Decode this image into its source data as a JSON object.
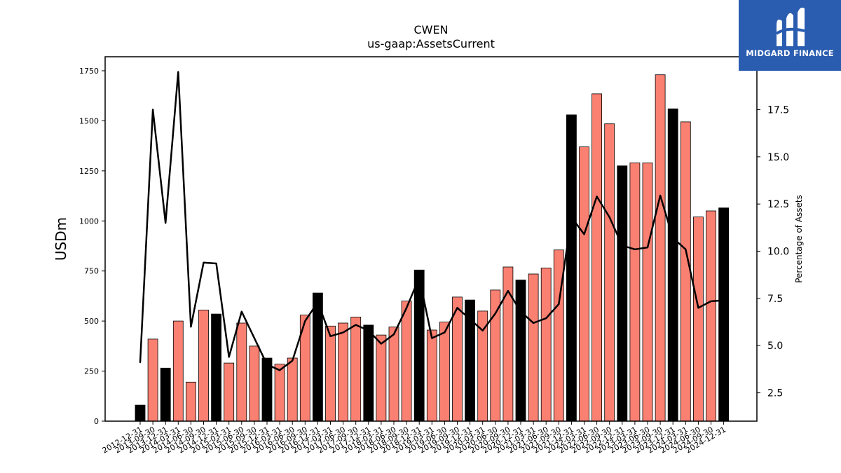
{
  "chart_data": {
    "type": "bar",
    "title": "CWEN",
    "subtitle": "us-gaap:AssetsCurrent",
    "ylabel": "USDm",
    "y2label": "Percentage of Assets",
    "ylim": [
      0,
      1820
    ],
    "y2lim": [
      1.0,
      20.3
    ],
    "yticks": [
      0,
      250,
      500,
      750,
      1000,
      1250,
      1500,
      1750
    ],
    "y2ticks": [
      2.5,
      5.0,
      7.5,
      10.0,
      12.5,
      15.0,
      17.5
    ],
    "colors": {
      "annual": "#000000",
      "quarterly": "#fa8072",
      "line": "#000000"
    },
    "categories": [
      "2012-12-31",
      "2013-09-30",
      "2013-12-31",
      "2014-03-31",
      "2014-06-30",
      "2014-09-30",
      "2014-12-31",
      "2015-03-31",
      "2015-06-30",
      "2015-09-30",
      "2015-12-31",
      "2016-03-31",
      "2016-06-30",
      "2016-09-30",
      "2016-12-31",
      "2017-03-31",
      "2017-06-30",
      "2017-09-30",
      "2017-12-31",
      "2018-03-31",
      "2018-06-30",
      "2018-09-30",
      "2018-12-31",
      "2019-03-31",
      "2019-06-30",
      "2019-09-30",
      "2019-12-31",
      "2020-03-31",
      "2020-06-30",
      "2020-09-30",
      "2020-12-31",
      "2021-03-31",
      "2021-06-30",
      "2021-09-30",
      "2021-12-31",
      "2022-03-31",
      "2022-06-30",
      "2022-09-30",
      "2022-12-31",
      "2023-03-31",
      "2023-06-30",
      "2023-09-30",
      "2023-12-31",
      "2024-03-31",
      "2024-06-30",
      "2024-09-30",
      "2024-12-31"
    ],
    "series": [
      {
        "kind": "bar",
        "values": [
          80,
          410,
          265,
          500,
          195,
          555,
          535,
          290,
          490,
          375,
          315,
          285,
          315,
          530,
          640,
          475,
          490,
          520,
          480,
          430,
          470,
          600,
          755,
          455,
          495,
          620,
          605,
          550,
          655,
          770,
          705,
          735,
          765,
          855,
          1530,
          1370,
          1635,
          1485,
          1275,
          1290,
          1290,
          1730,
          1560,
          1495,
          1020,
          1050,
          1065
        ],
        "annual": [
          true,
          false,
          true,
          false,
          false,
          false,
          true,
          false,
          false,
          false,
          true,
          false,
          false,
          false,
          true,
          false,
          false,
          false,
          true,
          false,
          false,
          false,
          true,
          false,
          false,
          false,
          true,
          false,
          false,
          false,
          true,
          false,
          false,
          false,
          true,
          false,
          false,
          false,
          true,
          false,
          false,
          false,
          true,
          false,
          false,
          false,
          true
        ]
      },
      {
        "kind": "line",
        "values": [
          4.1,
          17.5,
          11.5,
          19.5,
          6.0,
          9.4,
          9.35,
          4.4,
          6.8,
          5.4,
          4.0,
          3.7,
          4.2,
          6.3,
          7.3,
          5.5,
          5.7,
          6.1,
          5.8,
          5.1,
          5.6,
          7.0,
          8.6,
          5.4,
          5.7,
          7.0,
          6.4,
          5.8,
          6.7,
          7.9,
          6.8,
          6.2,
          6.45,
          7.2,
          11.8,
          10.9,
          12.9,
          11.8,
          10.3,
          10.1,
          10.2,
          12.95,
          10.7,
          10.1,
          7.0,
          7.35,
          7.4
        ]
      }
    ]
  },
  "logo": {
    "text": "MIDGARD FINANCE",
    "icon": "midgard-m-logo-icon",
    "color": "#2a5db0"
  }
}
